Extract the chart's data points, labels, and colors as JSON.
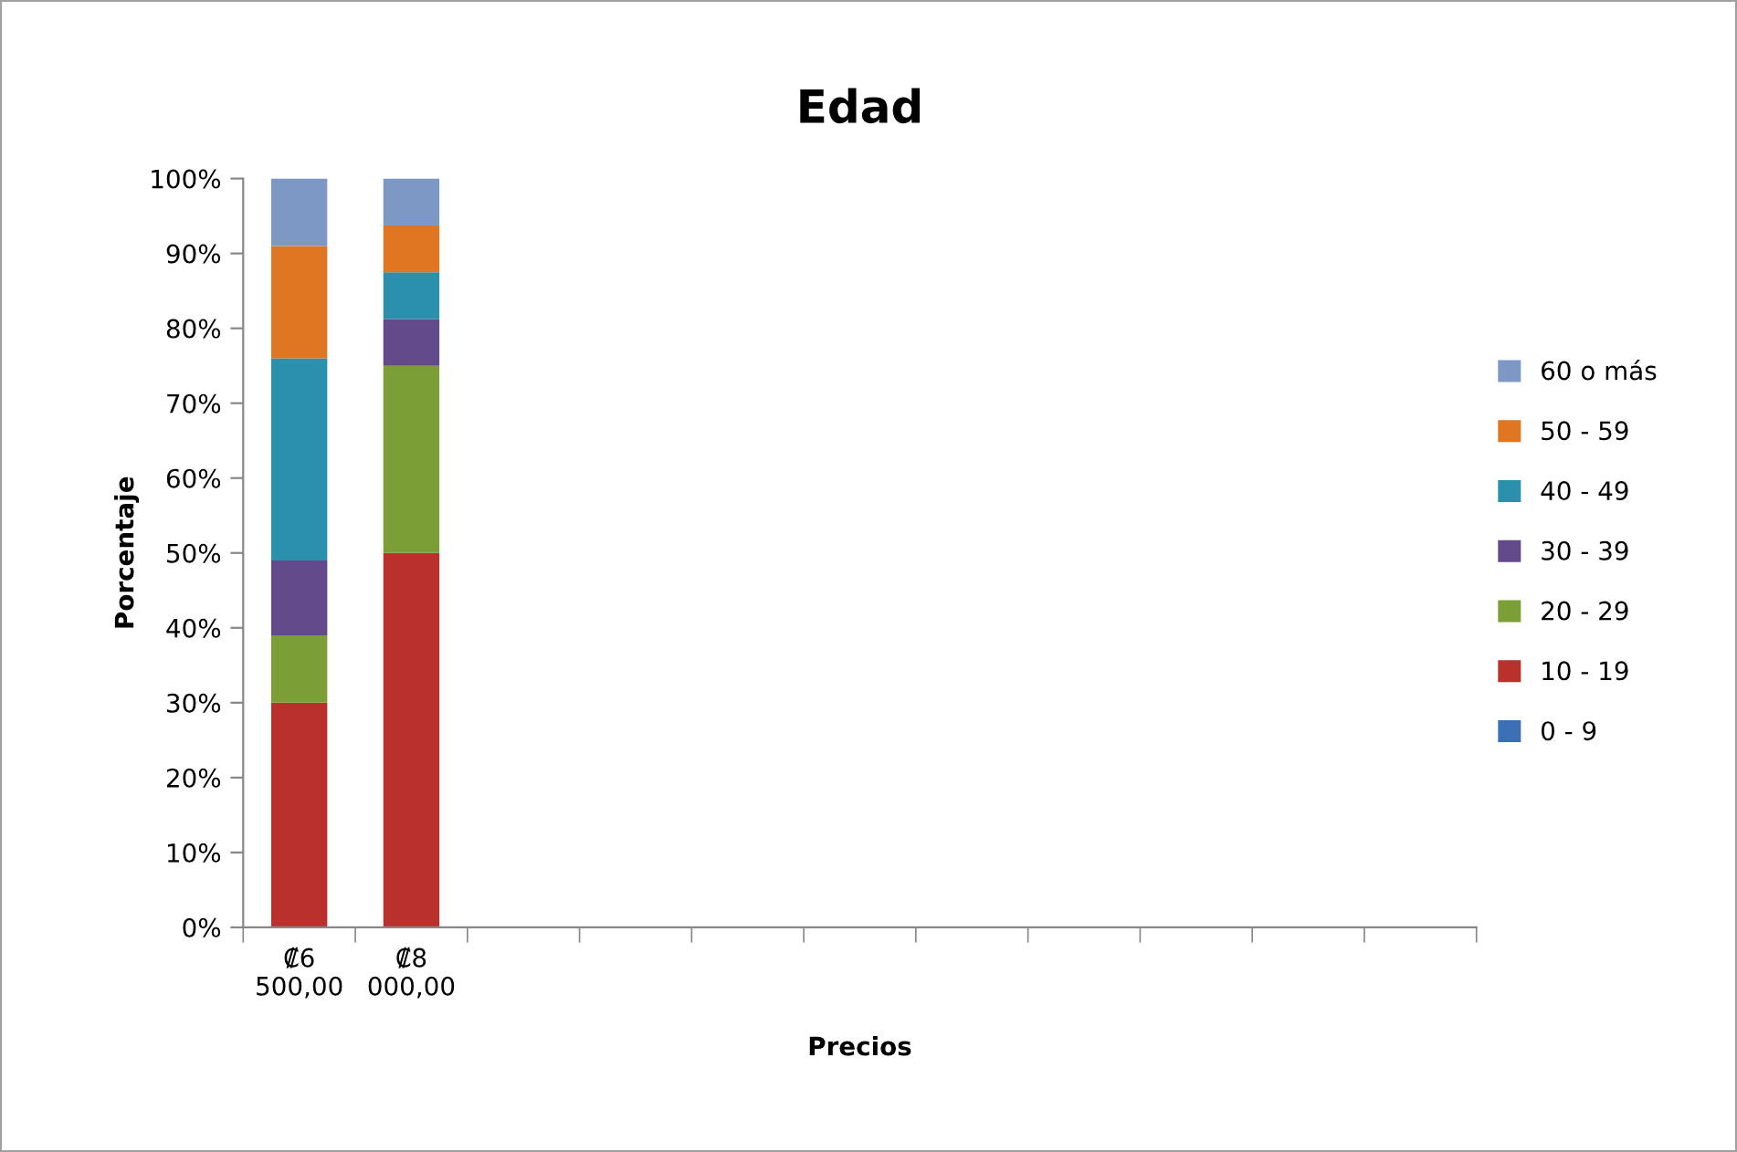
{
  "chart_data": {
    "type": "bar",
    "stacked": true,
    "title": "Edad",
    "xlabel": "Precios",
    "ylabel": "Porcentaje",
    "categories": [
      "₡6\n500,00",
      "₡8\n000,00",
      null,
      null,
      null,
      null,
      null,
      null,
      null,
      null,
      null
    ],
    "series": [
      {
        "name": "0 - 9",
        "color": "#3b6fb6",
        "values": [
          0,
          0,
          null,
          null,
          null,
          null,
          null,
          null,
          null,
          null,
          null
        ]
      },
      {
        "name": "10 - 19",
        "color": "#b9302c",
        "values": [
          30,
          50,
          null,
          null,
          null,
          null,
          null,
          null,
          null,
          null,
          null
        ]
      },
      {
        "name": "20 - 29",
        "color": "#7b9f36",
        "values": [
          9,
          25,
          null,
          null,
          null,
          null,
          null,
          null,
          null,
          null,
          null
        ]
      },
      {
        "name": "30 - 39",
        "color": "#634a8a",
        "values": [
          10,
          6.25,
          null,
          null,
          null,
          null,
          null,
          null,
          null,
          null,
          null
        ]
      },
      {
        "name": "40 - 49",
        "color": "#2a90ac",
        "values": [
          27,
          6.25,
          null,
          null,
          null,
          null,
          null,
          null,
          null,
          null,
          null
        ]
      },
      {
        "name": "50 - 59",
        "color": "#e07622",
        "values": [
          15,
          6.25,
          null,
          null,
          null,
          null,
          null,
          null,
          null,
          null,
          null
        ]
      },
      {
        "name": "60 o más",
        "color": "#7e98c6",
        "values": [
          9,
          6.25,
          null,
          null,
          null,
          null,
          null,
          null,
          null,
          null,
          null
        ]
      }
    ],
    "ylim": [
      0,
      100
    ],
    "yticks": [
      {
        "value": 0,
        "label": "0%"
      },
      {
        "value": 10,
        "label": "10%"
      },
      {
        "value": 20,
        "label": "20%"
      },
      {
        "value": 30,
        "label": "30%"
      },
      {
        "value": 40,
        "label": "40%"
      },
      {
        "value": 50,
        "label": "50%"
      },
      {
        "value": 60,
        "label": "60%"
      },
      {
        "value": 70,
        "label": "70%"
      },
      {
        "value": 80,
        "label": "80%"
      },
      {
        "value": 90,
        "label": "90%"
      },
      {
        "value": 100,
        "label": "100%"
      }
    ],
    "grid": false,
    "legend": "right"
  }
}
